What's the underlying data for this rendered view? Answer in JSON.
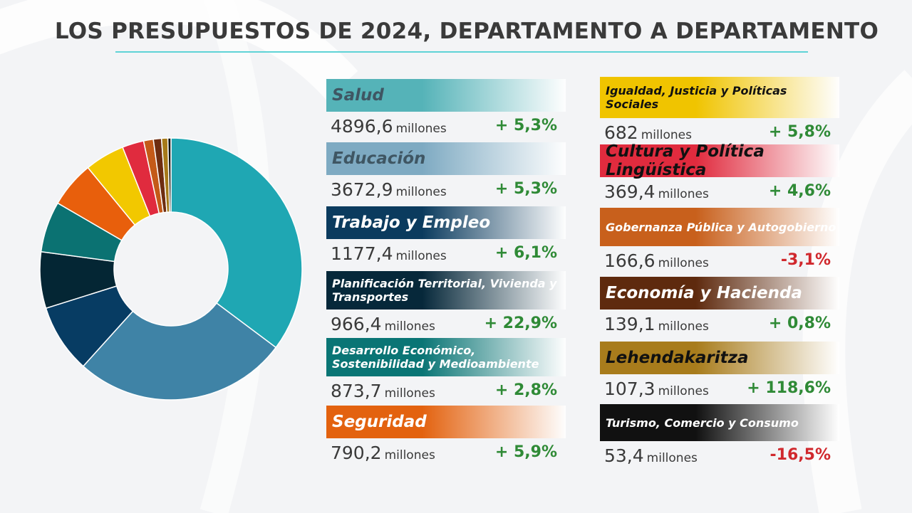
{
  "title": "LOS PRESUPUESTOS DE 2024, DEPARTAMENTO A DEPARTAMENTO",
  "unit_label": "millones",
  "chart_data": {
    "type": "pie",
    "variant": "donut",
    "categories": [
      "Salud",
      "Educación",
      "Trabajo y Empleo",
      "Planificación Territorial, Vivienda y Transportes",
      "Desarrollo Económico, Sostenibilidad y Medioambiente",
      "Seguridad",
      "Igualdad, Justicia y Políticas Sociales",
      "Cultura y Política Lingüística",
      "Gobernanza Pública y Autogobierno",
      "Economía y Hacienda",
      "Lehendakaritza",
      "Turismo, Comercio y Consumo"
    ],
    "values": [
      4896.6,
      3672.9,
      1177.4,
      966.4,
      873.7,
      790.2,
      682,
      369.4,
      166.6,
      139.1,
      107.3,
      53.4
    ],
    "colors": [
      "#1fa7b3",
      "#3f83a6",
      "#073c63",
      "#042634",
      "#0b7272",
      "#e85f0c",
      "#f2c800",
      "#e02b3e",
      "#c45a18",
      "#6e2d10",
      "#a67a1a",
      "#111111"
    ]
  },
  "departments": [
    {
      "name": "Salud",
      "value": "4896,6",
      "change": "+ 5,3%",
      "sign": "pos",
      "color": "#55b3b8",
      "text": "light"
    },
    {
      "name": "Educación",
      "value": "3672,9",
      "change": "+ 5,3%",
      "sign": "pos",
      "color": "#7eaac2",
      "text": "light"
    },
    {
      "name": "Trabajo y Empleo",
      "value": "1177,4",
      "change": "+ 6,1%",
      "sign": "pos",
      "color": "#0b3b5e",
      "text": "dark"
    },
    {
      "name": "Planificación Territorial, Vivienda y Transportes",
      "value": "966,4",
      "change": "+ 22,9%",
      "sign": "pos",
      "color": "#06283a",
      "text": "dark"
    },
    {
      "name": "Desarrollo Económico, Sostenibilidad y Medioambiente",
      "value": "873,7",
      "change": "+ 2,8%",
      "sign": "pos",
      "color": "#0a7575",
      "text": "dark"
    },
    {
      "name": "Seguridad",
      "value": "790,2",
      "change": "+ 5,9%",
      "sign": "pos",
      "color": "#e3620f",
      "text": "dark"
    },
    {
      "name": "Igualdad, Justicia y Políticas Sociales",
      "value": "682",
      "change": "+ 5,8%",
      "sign": "pos",
      "color": "#f0c400",
      "text": "black"
    },
    {
      "name": "Cultura y Política Lingüística",
      "value": "369,4",
      "change": "+ 4,6%",
      "sign": "pos",
      "color": "#e02b3e",
      "text": "black"
    },
    {
      "name": "Gobernanza Pública y Autogobierno",
      "value": "166,6",
      "change": "-3,1%",
      "sign": "neg",
      "color": "#c8601c",
      "text": "dark"
    },
    {
      "name": "Economía y Hacienda",
      "value": "139,1",
      "change": "+ 0,8%",
      "sign": "pos",
      "color": "#5e2a0e",
      "text": "dark"
    },
    {
      "name": "Lehendakaritza",
      "value": "107,3",
      "change": "+ 118,6%",
      "sign": "pos",
      "color": "#a87c1c",
      "text": "black"
    },
    {
      "name": "Turismo, Comercio y Consumo",
      "value": "53,4",
      "change": "-16,5%",
      "sign": "neg",
      "color": "#111111",
      "text": "dark"
    }
  ]
}
